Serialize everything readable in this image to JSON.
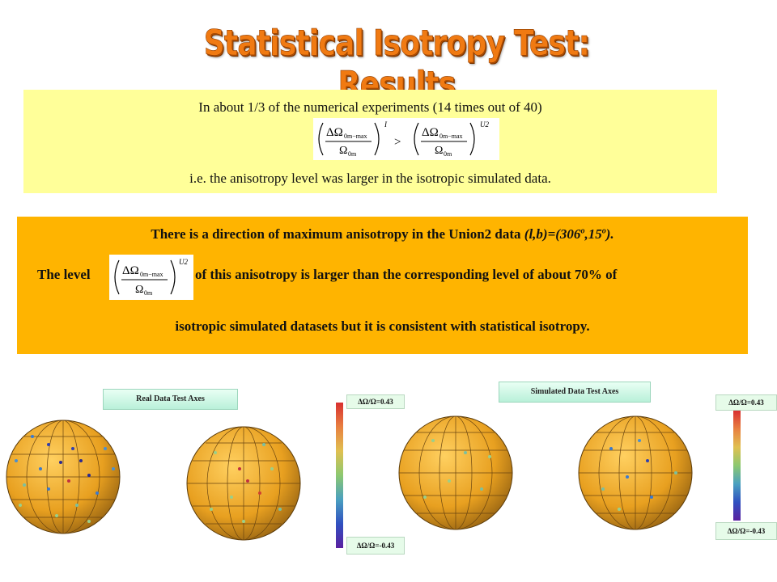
{
  "title": "Statistical Isotropy Test: Results",
  "box1": {
    "line1": "In about 1/3 of the numerical experiments (14 times out of 40)",
    "line3": "i.e. the anisotropy level was larger in the isotropic simulated data.",
    "formula": {
      "numerator": "ΔΩ",
      "num_sub": "0m−max",
      "denominator": "Ω",
      "den_sub": "0m",
      "sup_left": "I",
      "sup_right": "U2",
      "operator": ">"
    }
  },
  "box2": {
    "line1_a": "There is a direction of maximum anisotropy in the Union2 data ",
    "line1_b": "(l,b)=(306",
    "line1_c": ",15",
    "line1_d": ").",
    "deg": "o",
    "line2_a": "The level",
    "line2_b": "of this anisotropy  is larger than the corresponding level of about 70% of",
    "line3": "isotropic simulated datasets but it is consistent with statistical isotropy.",
    "formula": {
      "numerator": "ΔΩ",
      "num_sub": "0m−max",
      "denominator": "Ω",
      "den_sub": "0m",
      "sup": "U2"
    }
  },
  "panels": {
    "real_label": "Real Data Test Axes",
    "sim_label": "Simulated Data Test Axes"
  },
  "colorbars": {
    "left_top": "ΔΩ/Ω=0.43",
    "left_bottom": "ΔΩ/Ω=-0.43",
    "right_top": "ΔΩ/Ω=0.43",
    "right_bottom": "ΔΩ/Ω=-0.43"
  },
  "colors": {
    "title": "#f07a12",
    "box1_bg": "#ffff99",
    "box2_bg": "#ffb400",
    "globe": "#e8a020"
  }
}
